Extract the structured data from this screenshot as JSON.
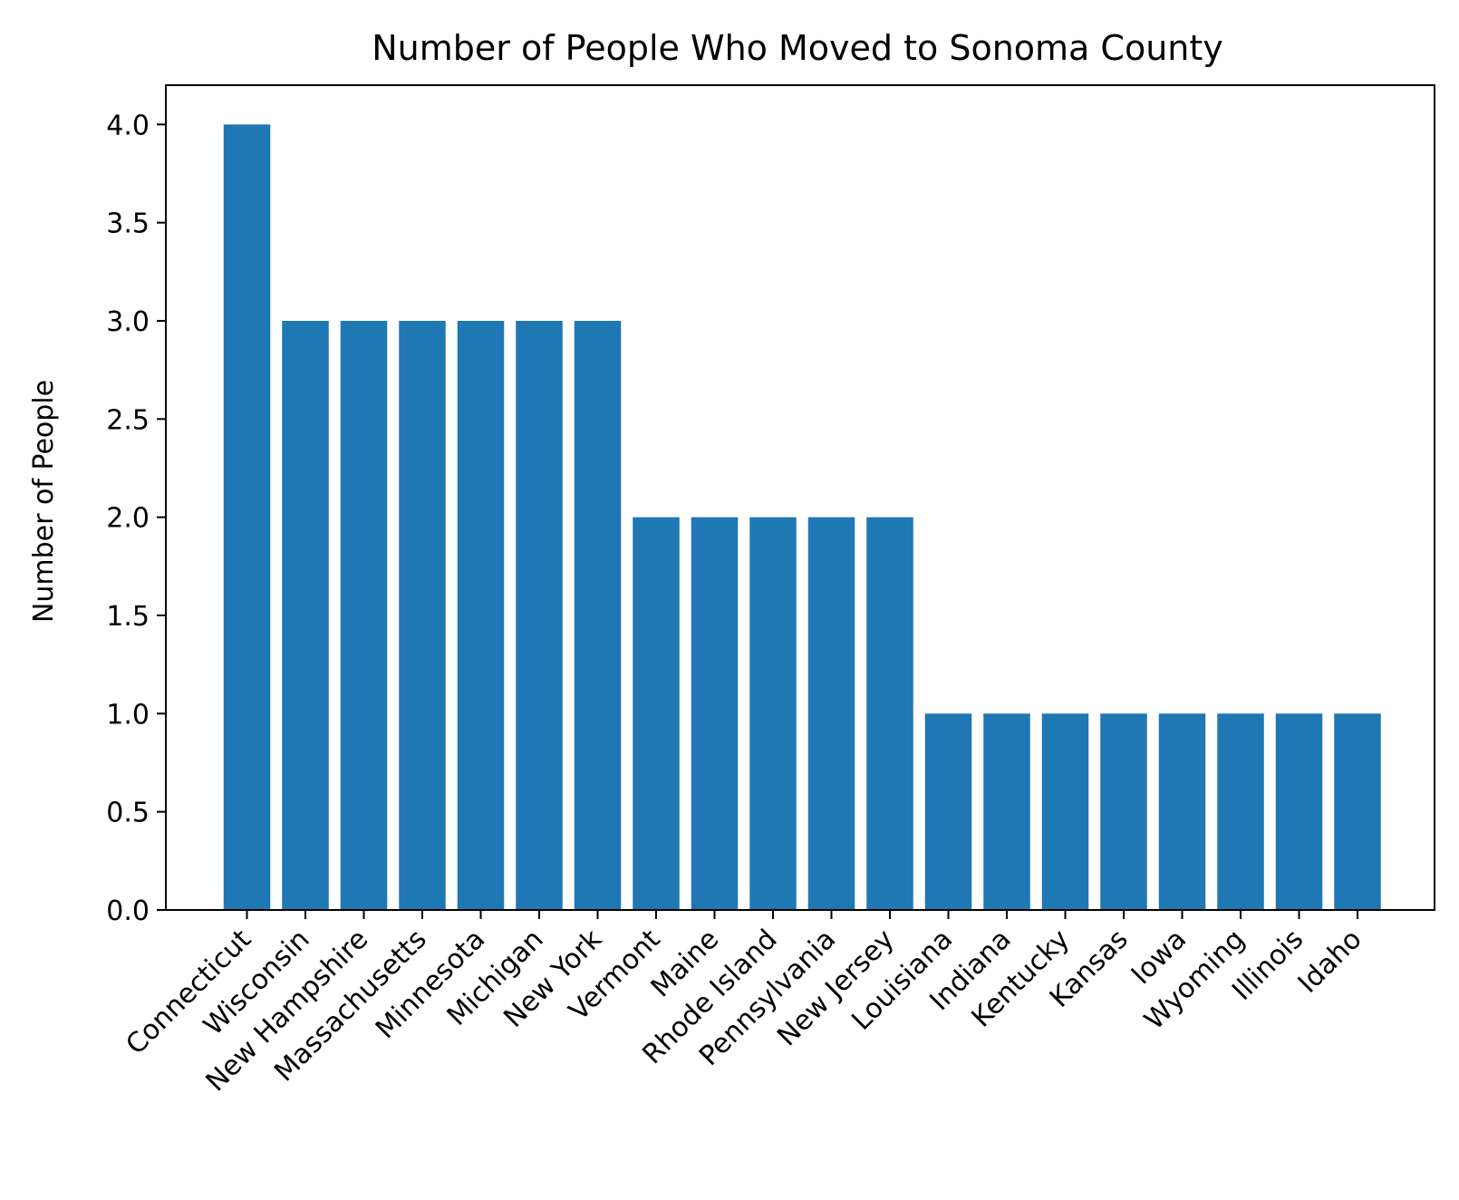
{
  "chart_data": {
    "type": "bar",
    "title": "Number of People Who Moved to Sonoma County",
    "xlabel": "",
    "ylabel": "Number of People",
    "categories": [
      "Connecticut",
      "Wisconsin",
      "New Hampshire",
      "Massachusetts",
      "Minnesota",
      "Michigan",
      "New York",
      "Vermont",
      "Maine",
      "Rhode Island",
      "Pennsylvania",
      "New Jersey",
      "Louisiana",
      "Indiana",
      "Kentucky",
      "Kansas",
      "Iowa",
      "Wyoming",
      "Illinois",
      "Idaho"
    ],
    "values": [
      4,
      3,
      3,
      3,
      3,
      3,
      3,
      2,
      2,
      2,
      2,
      2,
      1,
      1,
      1,
      1,
      1,
      1,
      1,
      1
    ],
    "ylim": [
      0,
      4.2
    ],
    "yticks": [
      "0.0",
      "0.5",
      "1.0",
      "1.5",
      "2.0",
      "2.5",
      "3.0",
      "3.5",
      "4.0"
    ],
    "bar_color": "#1f77b4",
    "grid": false,
    "legend": "none"
  }
}
